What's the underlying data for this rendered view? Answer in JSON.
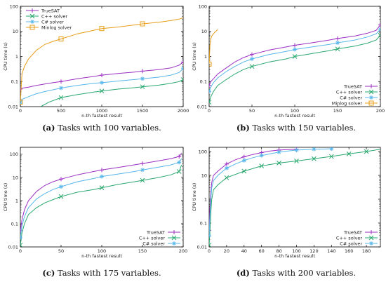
{
  "colors": {
    "truesat": "#9b2fc2",
    "cpp": "#2aa86e",
    "csharp": "#57b6ea",
    "minlog": "#e89d18"
  },
  "chart_data": [
    {
      "type": "line",
      "caption_letter": "(a)",
      "caption_text": " Tasks with 100 variables.",
      "xlabel": "n-th fastest result",
      "ylabel": "CPU time (s)",
      "xlim": [
        0,
        2000
      ],
      "ylim": [
        0.01,
        100
      ],
      "yscale": "log",
      "xticks": [
        "0",
        "500",
        "1000",
        "1500",
        "2000"
      ],
      "yticks": [
        "0.01",
        "0.1",
        "1",
        "10",
        "100"
      ],
      "legend_position": "top-left",
      "series": [
        {
          "name": "TrueSAT",
          "color_key": "truesat",
          "marker": "plus",
          "x": [
            0,
            30,
            100,
            200,
            300,
            400,
            500,
            700,
            900,
            1000,
            1200,
            1400,
            1500,
            1700,
            1850,
            1950,
            2000
          ],
          "y": [
            0.05,
            0.055,
            0.06,
            0.07,
            0.08,
            0.09,
            0.1,
            0.13,
            0.16,
            0.18,
            0.21,
            0.24,
            0.26,
            0.3,
            0.35,
            0.45,
            0.6
          ]
        },
        {
          "name": "C++ solver",
          "color_key": "cpp",
          "marker": "x",
          "x": [
            250,
            350,
            500,
            700,
            900,
            1000,
            1200,
            1400,
            1500,
            1700,
            1850,
            1950,
            2000
          ],
          "y": [
            0.01,
            0.015,
            0.023,
            0.03,
            0.038,
            0.042,
            0.05,
            0.057,
            0.062,
            0.072,
            0.085,
            0.1,
            0.12
          ]
        },
        {
          "name": "C# solver",
          "color_key": "csharp",
          "marker": "star",
          "x": [
            0,
            30,
            100,
            200,
            300,
            500,
            700,
            900,
            1000,
            1200,
            1400,
            1500,
            1700,
            1850,
            1950,
            2000
          ],
          "y": [
            0.015,
            0.02,
            0.025,
            0.033,
            0.04,
            0.055,
            0.07,
            0.085,
            0.09,
            0.105,
            0.12,
            0.13,
            0.15,
            0.18,
            0.23,
            0.33
          ]
        },
        {
          "name": "Minlog solver",
          "color_key": "minlog",
          "marker": "square",
          "x": [
            0,
            20,
            50,
            100,
            200,
            300,
            400,
            500,
            700,
            900,
            1000,
            1200,
            1400,
            1500,
            1700,
            1850,
            1950,
            2000
          ],
          "y": [
            0.015,
            0.2,
            0.4,
            0.8,
            1.8,
            3,
            4,
            5,
            8,
            11,
            13,
            15,
            18,
            20,
            23,
            27,
            31,
            35
          ]
        }
      ],
      "marker_x": [
        [
          0,
          500,
          1000,
          1500,
          2000
        ],
        [
          500,
          1000,
          1500,
          2000
        ],
        [
          0,
          500,
          1000,
          1500,
          2000
        ],
        [
          0,
          500,
          1000,
          1500
        ]
      ]
    },
    {
      "type": "line",
      "caption_letter": "(b)",
      "caption_text": " Tasks with 150 variables.",
      "xlabel": "n-th fastest result",
      "ylabel": "CPU time (s)",
      "xlim": [
        0,
        200
      ],
      "ylim": [
        0.01,
        100
      ],
      "yscale": "log",
      "xticks": [
        "0",
        "50",
        "100",
        "150",
        "200"
      ],
      "yticks": [
        "0.01",
        "0.1",
        "1",
        "10",
        "100"
      ],
      "legend_position": "bottom-right",
      "series": [
        {
          "name": "TrueSAT",
          "color_key": "truesat",
          "marker": "plus",
          "x": [
            0,
            2,
            5,
            10,
            20,
            30,
            40,
            50,
            70,
            90,
            100,
            120,
            140,
            150,
            170,
            185,
            195,
            200
          ],
          "y": [
            0.07,
            0.1,
            0.13,
            0.2,
            0.35,
            0.6,
            0.9,
            1.2,
            1.8,
            2.4,
            2.8,
            3.5,
            4.5,
            5.2,
            6.5,
            8.5,
            11,
            18
          ]
        },
        {
          "name": "C++ solver",
          "color_key": "cpp",
          "marker": "x",
          "x": [
            0,
            2,
            5,
            10,
            20,
            30,
            40,
            50,
            70,
            90,
            100,
            120,
            140,
            150,
            170,
            185,
            195,
            200
          ],
          "y": [
            0.015,
            0.025,
            0.04,
            0.07,
            0.12,
            0.2,
            0.3,
            0.4,
            0.6,
            0.8,
            1,
            1.3,
            1.7,
            2,
            2.6,
            3.4,
            4.5,
            7
          ]
        },
        {
          "name": "C# solver",
          "color_key": "csharp",
          "marker": "star",
          "x": [
            0,
            2,
            5,
            10,
            20,
            30,
            40,
            50,
            70,
            90,
            100,
            120,
            140,
            150,
            170,
            185,
            195,
            200
          ],
          "y": [
            0.04,
            0.06,
            0.09,
            0.14,
            0.25,
            0.4,
            0.6,
            0.8,
            1.2,
            1.6,
            1.9,
            2.4,
            3,
            3.5,
            4.5,
            6,
            8,
            12
          ]
        },
        {
          "name": "Minlog solver",
          "color_key": "minlog",
          "marker": "square",
          "x": [
            0,
            1,
            2,
            3,
            5,
            7,
            9,
            10
          ],
          "y": [
            0.5,
            3,
            5,
            6.5,
            8,
            9.5,
            11,
            12
          ]
        }
      ],
      "marker_x": [
        [
          0,
          50,
          100,
          150,
          200
        ],
        [
          0,
          50,
          100,
          150,
          200
        ],
        [
          0,
          50,
          100,
          150,
          200
        ],
        [
          0
        ]
      ]
    },
    {
      "type": "line",
      "caption_letter": "(c)",
      "caption_text": " Tasks with 175 variables.",
      "xlabel": "n-th fastest result",
      "ylabel": "CPU time (s)",
      "xlim": [
        0,
        200
      ],
      "ylim": [
        0.01,
        200
      ],
      "yscale": "log",
      "xticks": [
        "0",
        "50",
        "100",
        "150",
        "200"
      ],
      "yticks": [
        "0.01",
        "0.1",
        "1",
        "10",
        "100"
      ],
      "legend_position": "bottom-right",
      "series": [
        {
          "name": "TrueSAT",
          "color_key": "truesat",
          "marker": "plus",
          "x": [
            0,
            2,
            5,
            10,
            20,
            30,
            40,
            50,
            70,
            90,
            100,
            120,
            140,
            150,
            170,
            185,
            195,
            198
          ],
          "y": [
            0.05,
            0.15,
            0.4,
            1,
            2.5,
            4.5,
            6.5,
            8.5,
            13,
            18,
            21,
            27,
            35,
            40,
            52,
            65,
            80,
            110
          ]
        },
        {
          "name": "C++ solver",
          "color_key": "cpp",
          "marker": "x",
          "x": [
            0,
            2,
            5,
            10,
            20,
            30,
            40,
            50,
            70,
            90,
            100,
            120,
            140,
            150,
            170,
            185,
            195,
            198
          ],
          "y": [
            0.012,
            0.04,
            0.1,
            0.25,
            0.5,
            0.8,
            1.1,
            1.5,
            2.3,
            3,
            3.6,
            5,
            6.5,
            7.5,
            10,
            13,
            18,
            35
          ]
        },
        {
          "name": "C# solver",
          "color_key": "csharp",
          "marker": "star",
          "x": [
            0,
            2,
            5,
            10,
            20,
            30,
            40,
            50,
            70,
            90,
            100,
            120,
            140,
            150,
            170,
            185,
            195,
            198
          ],
          "y": [
            0.025,
            0.08,
            0.2,
            0.5,
            1.2,
            2,
            3,
            4,
            6.5,
            9,
            11,
            14,
            18,
            21,
            28,
            35,
            45,
            65
          ]
        }
      ],
      "marker_x": [
        [
          0,
          50,
          100,
          150,
          195
        ],
        [
          0,
          50,
          100,
          150,
          195
        ],
        [
          0,
          50,
          100,
          150,
          195
        ]
      ]
    },
    {
      "type": "line",
      "caption_letter": "(d)",
      "caption_text": " Tasks with 200 variables.",
      "xlabel": "n-th fastest result",
      "ylabel": "CPU time (s)",
      "xlim": [
        0,
        196
      ],
      "ylim": [
        0.01,
        150
      ],
      "yscale": "log",
      "xticks": [
        "0",
        "20",
        "40",
        "60",
        "80",
        "100",
        "120",
        "140",
        "160",
        "180"
      ],
      "yticks": [
        "0.01",
        "0.1",
        "1",
        "10",
        "100"
      ],
      "legend_position": "bottom-right",
      "series": [
        {
          "name": "TrueSAT",
          "color_key": "truesat",
          "marker": "plus",
          "x": [
            0,
            1,
            2,
            3,
            5,
            10,
            20,
            30,
            40,
            50,
            60,
            70,
            80,
            90,
            100
          ],
          "y": [
            0.05,
            0.5,
            2,
            5,
            10,
            15,
            30,
            45,
            60,
            75,
            90,
            105,
            115,
            120,
            125
          ]
        },
        {
          "name": "C++ solver",
          "color_key": "cpp",
          "marker": "x",
          "x": [
            0,
            1,
            2,
            3,
            5,
            10,
            20,
            40,
            60,
            80,
            100,
            120,
            140,
            160,
            180,
            196
          ],
          "y": [
            0.012,
            0.05,
            0.3,
            1,
            2.5,
            4,
            8,
            15,
            25,
            33,
            40,
            50,
            62,
            80,
            100,
            125
          ]
        },
        {
          "name": "C# solver",
          "color_key": "csharp",
          "marker": "star",
          "x": [
            0,
            1,
            2,
            3,
            5,
            10,
            20,
            30,
            40,
            50,
            60,
            70,
            80,
            100,
            120,
            140
          ],
          "y": [
            0.03,
            0.2,
            1,
            3,
            6,
            10,
            20,
            30,
            42,
            55,
            68,
            80,
            95,
            115,
            125,
            130
          ]
        }
      ],
      "marker_x": [
        [
          0,
          20,
          40,
          60,
          80,
          100
        ],
        [
          0,
          20,
          40,
          60,
          80,
          100,
          120,
          140,
          160,
          180
        ],
        [
          0,
          20,
          40,
          60,
          80,
          100,
          120,
          140
        ]
      ]
    }
  ]
}
